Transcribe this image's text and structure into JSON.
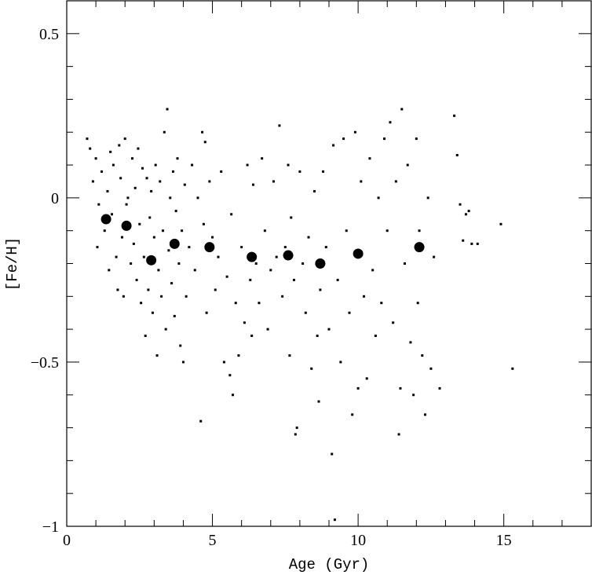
{
  "chart_data": {
    "type": "scatter",
    "xlabel": "Age (Gyr)",
    "ylabel": "[Fe/H]",
    "xlim": [
      0,
      18
    ],
    "ylim": [
      -1,
      0.6
    ],
    "x_ticks": [
      0,
      5,
      10,
      15
    ],
    "y_ticks": [
      -1,
      -0.5,
      0,
      0.5
    ],
    "x_tick_labels": [
      "0",
      "5",
      "10",
      "15"
    ],
    "y_tick_labels": [
      "−1",
      "−0.5",
      "0",
      "0.5"
    ],
    "x_minor_step": 1,
    "y_minor_step": 0.1,
    "grid": false,
    "legend": "none",
    "colors": {
      "points": "#000000",
      "background": "#ffffff"
    },
    "series": [
      {
        "role": "binned-means",
        "marker": "large-filled-circle",
        "points": [
          [
            1.35,
            -0.065
          ],
          [
            2.05,
            -0.085
          ],
          [
            2.9,
            -0.19
          ],
          [
            3.7,
            -0.14
          ],
          [
            4.9,
            -0.15
          ],
          [
            6.35,
            -0.18
          ],
          [
            7.6,
            -0.175
          ],
          [
            8.7,
            -0.2
          ],
          [
            10.0,
            -0.17
          ],
          [
            12.1,
            -0.15
          ]
        ]
      },
      {
        "role": "stars",
        "marker": "small-dot",
        "points": [
          [
            0.7,
            0.18
          ],
          [
            0.8,
            0.15
          ],
          [
            0.9,
            0.05
          ],
          [
            1.0,
            0.12
          ],
          [
            1.1,
            -0.02
          ],
          [
            1.05,
            -0.15
          ],
          [
            1.2,
            0.08
          ],
          [
            1.3,
            -0.1
          ],
          [
            1.4,
            0.02
          ],
          [
            1.45,
            -0.22
          ],
          [
            1.5,
            0.14
          ],
          [
            1.55,
            -0.05
          ],
          [
            1.6,
            0.1
          ],
          [
            1.7,
            -0.18
          ],
          [
            1.75,
            -0.28
          ],
          [
            1.8,
            0.16
          ],
          [
            1.85,
            0.06
          ],
          [
            1.9,
            -0.12
          ],
          [
            1.95,
            -0.3
          ],
          [
            2.0,
            0.18
          ],
          [
            2.05,
            -0.02
          ],
          [
            2.1,
            0.0
          ],
          [
            2.2,
            -0.2
          ],
          [
            2.25,
            0.12
          ],
          [
            2.3,
            -0.14
          ],
          [
            2.35,
            0.03
          ],
          [
            2.4,
            -0.25
          ],
          [
            2.45,
            0.15
          ],
          [
            2.5,
            -0.08
          ],
          [
            2.55,
            -0.32
          ],
          [
            2.6,
            0.09
          ],
          [
            2.65,
            -0.18
          ],
          [
            2.7,
            -0.42
          ],
          [
            2.75,
            0.06
          ],
          [
            2.8,
            -0.28
          ],
          [
            2.85,
            -0.06
          ],
          [
            2.9,
            0.02
          ],
          [
            2.95,
            -0.35
          ],
          [
            3.0,
            -0.12
          ],
          [
            3.05,
            0.1
          ],
          [
            3.1,
            -0.48
          ],
          [
            3.15,
            -0.22
          ],
          [
            3.2,
            0.05
          ],
          [
            3.25,
            -0.3
          ],
          [
            3.3,
            -0.1
          ],
          [
            3.35,
            0.2
          ],
          [
            3.4,
            -0.4
          ],
          [
            3.45,
            0.27
          ],
          [
            3.5,
            -0.16
          ],
          [
            3.55,
            0.0
          ],
          [
            3.6,
            -0.26
          ],
          [
            3.65,
            0.08
          ],
          [
            3.7,
            -0.36
          ],
          [
            3.75,
            -0.04
          ],
          [
            3.8,
            0.12
          ],
          [
            3.85,
            -0.2
          ],
          [
            3.9,
            -0.45
          ],
          [
            3.95,
            -0.1
          ],
          [
            4.0,
            -0.5
          ],
          [
            4.05,
            0.04
          ],
          [
            4.1,
            -0.3
          ],
          [
            4.2,
            -0.15
          ],
          [
            4.3,
            0.1
          ],
          [
            4.4,
            -0.22
          ],
          [
            4.5,
            0.0
          ],
          [
            4.6,
            -0.68
          ],
          [
            4.65,
            0.2
          ],
          [
            4.7,
            -0.08
          ],
          [
            4.75,
            0.17
          ],
          [
            4.8,
            -0.35
          ],
          [
            4.9,
            0.05
          ],
          [
            5.0,
            -0.12
          ],
          [
            5.1,
            -0.28
          ],
          [
            5.2,
            -0.18
          ],
          [
            5.3,
            0.08
          ],
          [
            5.4,
            -0.5
          ],
          [
            5.5,
            -0.24
          ],
          [
            5.6,
            -0.54
          ],
          [
            5.65,
            -0.05
          ],
          [
            5.7,
            -0.6
          ],
          [
            5.8,
            -0.32
          ],
          [
            5.9,
            -0.48
          ],
          [
            6.0,
            -0.15
          ],
          [
            6.1,
            -0.38
          ],
          [
            6.2,
            0.1
          ],
          [
            6.3,
            -0.25
          ],
          [
            6.35,
            -0.42
          ],
          [
            6.4,
            0.04
          ],
          [
            6.5,
            -0.2
          ],
          [
            6.6,
            -0.32
          ],
          [
            6.7,
            0.12
          ],
          [
            6.8,
            -0.1
          ],
          [
            6.9,
            -0.4
          ],
          [
            7.0,
            -0.22
          ],
          [
            7.1,
            0.05
          ],
          [
            7.2,
            -0.18
          ],
          [
            7.3,
            0.22
          ],
          [
            7.4,
            -0.3
          ],
          [
            7.5,
            -0.15
          ],
          [
            7.6,
            0.1
          ],
          [
            7.65,
            -0.48
          ],
          [
            7.7,
            -0.06
          ],
          [
            7.8,
            -0.25
          ],
          [
            7.85,
            -0.72
          ],
          [
            7.9,
            -0.7
          ],
          [
            8.0,
            0.08
          ],
          [
            8.1,
            -0.2
          ],
          [
            8.2,
            -0.35
          ],
          [
            8.3,
            -0.12
          ],
          [
            8.4,
            -0.52
          ],
          [
            8.5,
            0.02
          ],
          [
            8.6,
            -0.42
          ],
          [
            8.65,
            -0.62
          ],
          [
            8.7,
            -0.28
          ],
          [
            8.8,
            0.08
          ],
          [
            8.9,
            -0.15
          ],
          [
            9.0,
            -0.4
          ],
          [
            9.1,
            -0.78
          ],
          [
            9.15,
            0.16
          ],
          [
            9.2,
            -0.98
          ],
          [
            9.3,
            -0.25
          ],
          [
            9.4,
            -0.5
          ],
          [
            9.5,
            0.18
          ],
          [
            9.6,
            -0.1
          ],
          [
            9.7,
            -0.35
          ],
          [
            9.8,
            -0.66
          ],
          [
            9.9,
            0.2
          ],
          [
            10.0,
            -0.58
          ],
          [
            10.1,
            0.05
          ],
          [
            10.2,
            -0.3
          ],
          [
            10.3,
            -0.55
          ],
          [
            10.4,
            0.12
          ],
          [
            10.5,
            -0.22
          ],
          [
            10.6,
            -0.42
          ],
          [
            10.7,
            0.0
          ],
          [
            10.8,
            -0.32
          ],
          [
            10.9,
            0.18
          ],
          [
            11.0,
            -0.1
          ],
          [
            11.1,
            0.23
          ],
          [
            11.2,
            -0.38
          ],
          [
            11.3,
            0.05
          ],
          [
            11.4,
            -0.72
          ],
          [
            11.45,
            -0.58
          ],
          [
            11.5,
            0.27
          ],
          [
            11.6,
            -0.2
          ],
          [
            11.7,
            0.1
          ],
          [
            11.8,
            -0.44
          ],
          [
            11.9,
            -0.6
          ],
          [
            12.0,
            0.18
          ],
          [
            12.05,
            -0.32
          ],
          [
            12.1,
            -0.1
          ],
          [
            12.2,
            -0.48
          ],
          [
            12.3,
            -0.66
          ],
          [
            12.4,
            0.0
          ],
          [
            12.5,
            -0.52
          ],
          [
            12.6,
            -0.18
          ],
          [
            12.8,
            -0.58
          ],
          [
            13.3,
            0.25
          ],
          [
            13.4,
            0.13
          ],
          [
            13.5,
            -0.02
          ],
          [
            13.6,
            -0.13
          ],
          [
            13.7,
            -0.05
          ],
          [
            13.8,
            -0.04
          ],
          [
            13.9,
            -0.14
          ],
          [
            14.1,
            -0.14
          ],
          [
            14.9,
            -0.08
          ],
          [
            15.3,
            -0.52
          ]
        ]
      }
    ]
  }
}
